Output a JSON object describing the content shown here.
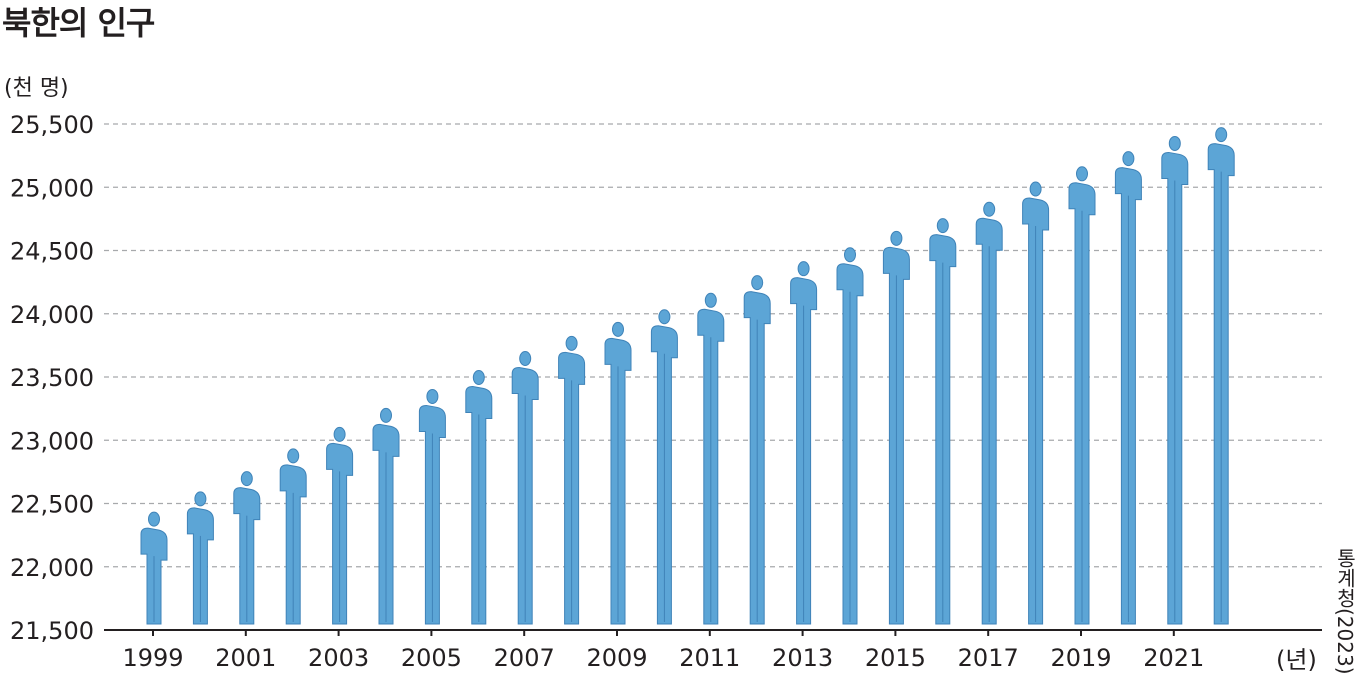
{
  "chart_data": {
    "type": "bar",
    "title": "북한의 인구",
    "ylabel": "(천 명)",
    "xlabel": "(년)",
    "source": "통계청(2023)",
    "ylim": [
      21500,
      25500
    ],
    "yticks": [
      21500,
      22000,
      22500,
      23000,
      23500,
      24000,
      24500,
      25000,
      25500
    ],
    "ytick_labels": [
      "21,500",
      "22,000",
      "22,500",
      "23,000",
      "23,500",
      "24,000",
      "24,500",
      "25,000",
      "25,500"
    ],
    "xtick_labels": [
      "1999",
      "2001",
      "2003",
      "2005",
      "2007",
      "2009",
      "2011",
      "2013",
      "2015",
      "2017",
      "2019",
      "2021"
    ],
    "grid": true,
    "bar_style": "person-pictogram",
    "bar_color": "#5ca5d6",
    "categories": [
      "1999",
      "2000",
      "2001",
      "2002",
      "2003",
      "2004",
      "2005",
      "2006",
      "2007",
      "2008",
      "2009",
      "2010",
      "2011",
      "2012",
      "2013",
      "2014",
      "2015",
      "2016",
      "2017",
      "2018",
      "2019",
      "2020",
      "2021",
      "2022"
    ],
    "values": [
      22400,
      22560,
      22720,
      22900,
      23070,
      23220,
      23370,
      23520,
      23670,
      23790,
      23900,
      24000,
      24130,
      24270,
      24380,
      24490,
      24620,
      24720,
      24850,
      25010,
      25130,
      25250,
      25370,
      25440
    ]
  }
}
